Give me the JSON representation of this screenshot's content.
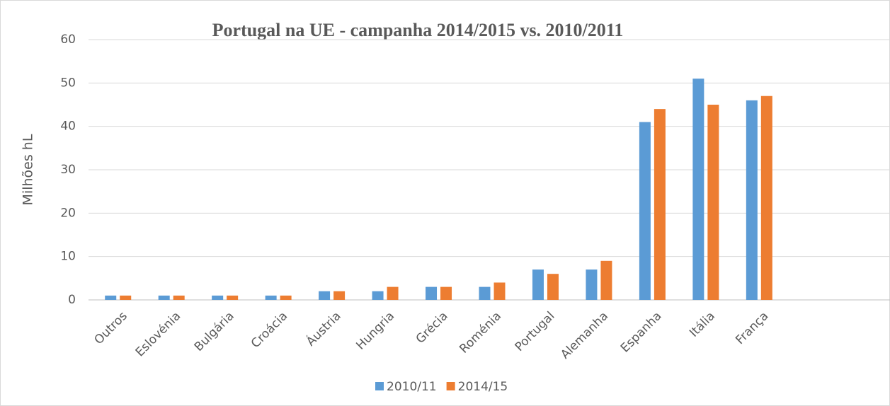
{
  "chart_data": {
    "type": "bar",
    "title": "Portugal na UE - campanha 2014/2015 vs. 2010/2011",
    "y_label": "Milhões hL",
    "categories": [
      "Outros",
      "Eslovénia",
      "Bulgária",
      "Croácia",
      "Áustria",
      "Hungria",
      "Grécia",
      "Roménia",
      "Portugal",
      "Alemanha",
      "Espanha",
      "Itália",
      "França",
      null,
      null
    ],
    "series": [
      {
        "name": "2010/11",
        "color": "#5b9bd5",
        "values": [
          1,
          1,
          1,
          1,
          2,
          2,
          3,
          3,
          7,
          7,
          41,
          51,
          46,
          null,
          null
        ]
      },
      {
        "name": "2014/15",
        "color": "#ed7d31",
        "values": [
          1,
          1,
          1,
          1,
          2,
          3,
          3,
          4,
          6,
          9,
          44,
          45,
          47,
          null,
          null
        ]
      }
    ],
    "ylim": [
      0,
      60
    ],
    "yticks": [
      0,
      10,
      20,
      30,
      40,
      50,
      60
    ],
    "grid": true,
    "legend": "bottom"
  }
}
